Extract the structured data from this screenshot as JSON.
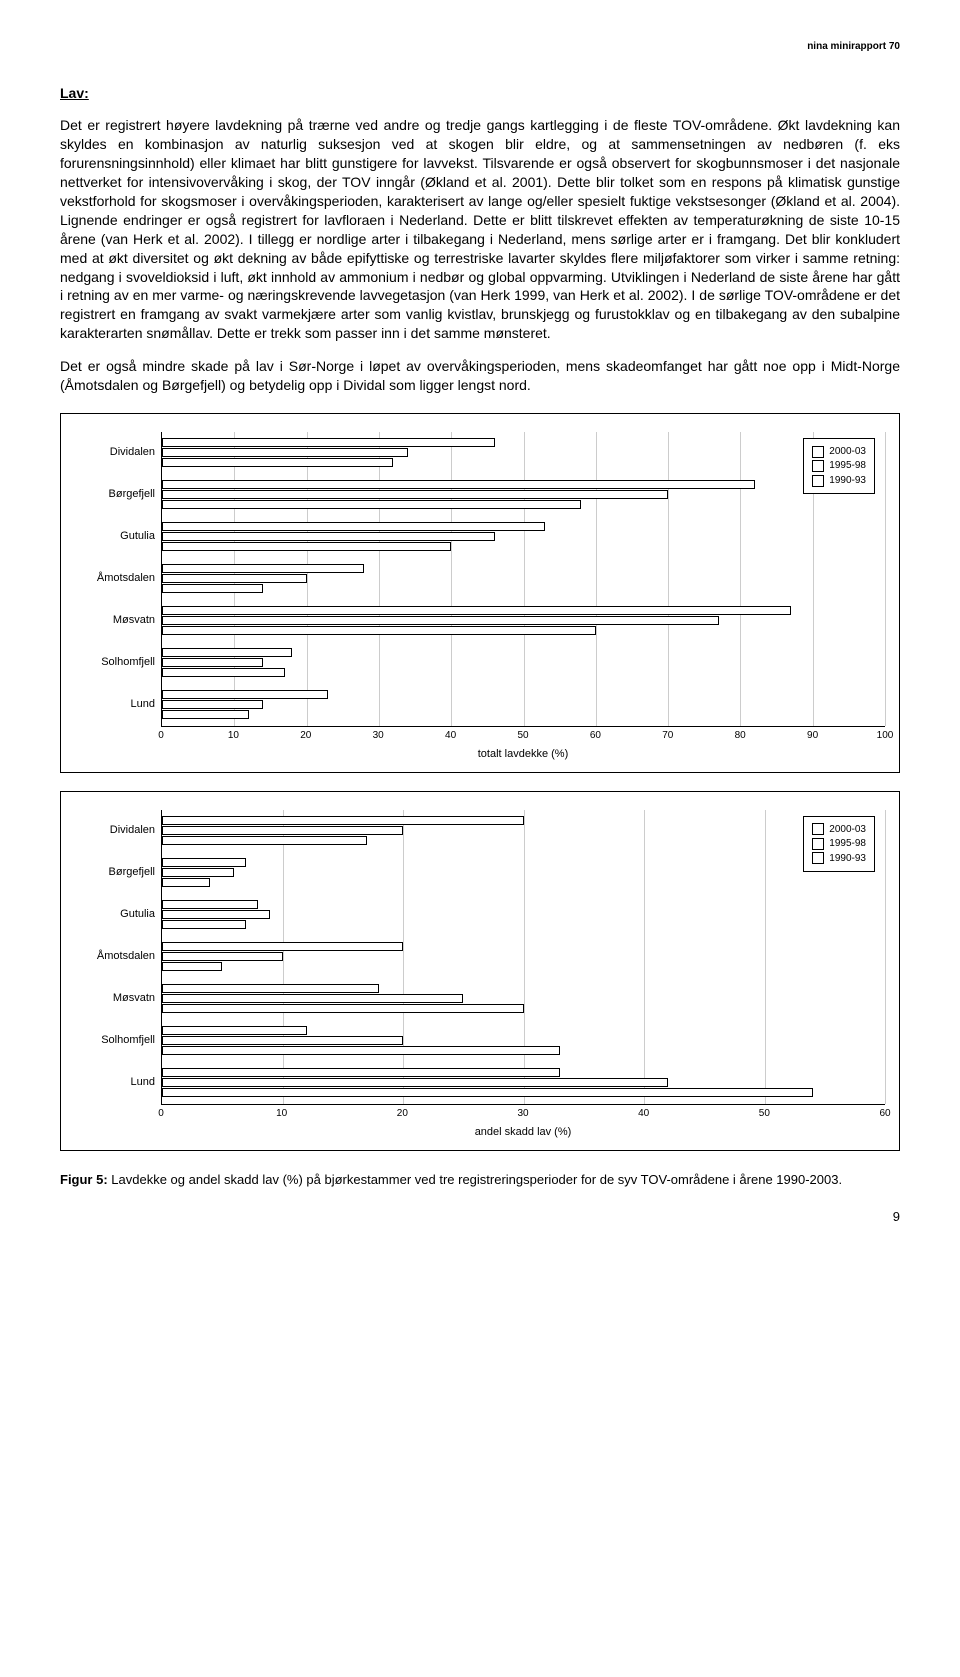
{
  "header": {
    "right": "nina minirapport 70"
  },
  "title": "Lav:",
  "para1": "Det er registrert høyere lavdekning på trærne ved andre og tredje gangs kartlegging i de fleste TOV-områdene. Økt lavdekning kan skyldes en kombinasjon av naturlig suksesjon ved at skogen blir eldre, og at sammensetningen av nedbøren (f. eks forurensningsinnhold) eller klimaet har blitt gunstigere for lavvekst. Tilsvarende er også observert for skogbunnsmoser i det nasjonale nettverket for intensivovervåking i skog, der TOV inngår (Økland et al. 2001). Dette blir tolket som en respons på klimatisk gunstige vekstforhold for skogsmoser i overvåkingsperioden, karakterisert av lange og/eller spesielt fuktige vekstsesonger (Økland et al. 2004). Lignende endringer er også registrert for lavfloraen i Nederland. Dette er blitt tilskrevet effekten av temperaturøkning de siste 10-15 årene (van Herk et al. 2002). I tillegg er nordlige arter i tilbakegang i Nederland, mens sørlige arter er i framgang. Det blir konkludert med at økt diversitet og økt dekning av både epifyttiske og terrestriske lavarter skyldes flere miljøfaktorer som virker i samme retning: nedgang i svoveldioksid i luft, økt innhold av ammonium i nedbør og global oppvarming. Utviklingen i Nederland de siste årene har gått i retning av en mer varme- og næringskrevende lavvegetasjon (van Herk 1999, van Herk et al. 2002). I de sørlige TOV-områdene er det registrert en framgang av svakt varmekjære arter som vanlig kvistlav, brunskjegg og furustokklav og en tilbakegang av den subalpine karakterarten snømållav. Dette er trekk som passer inn i det samme mønsteret.",
  "para2": "Det er også mindre skade på lav i Sør-Norge i løpet av overvåkingsperioden, mens skadeomfanget har gått noe opp i Midt-Norge (Åmotsdalen og Børgefjell) og betydelig opp i Dividal som ligger lengst nord.",
  "chart1": {
    "type": "bar-horizontal-grouped",
    "x_title": "totalt lavdekke (%)",
    "x_min": 0,
    "x_max": 100,
    "x_step": 10,
    "tick_fontsize": 10,
    "label_fontsize": 11,
    "bar_fill": "#ffffff",
    "bar_stroke": "#000000",
    "grid_color": "#cccccc",
    "background_color": "#ffffff",
    "categories": [
      "Dividalen",
      "Børgefjell",
      "Gutulia",
      "Åmotsdalen",
      "Møsvatn",
      "Solhomfjell",
      "Lund"
    ],
    "series": [
      {
        "name": "2000-03",
        "values": [
          46,
          82,
          53,
          28,
          87,
          18,
          23
        ]
      },
      {
        "name": "1995-98",
        "values": [
          34,
          70,
          46,
          20,
          77,
          14,
          14
        ]
      },
      {
        "name": "1990-93",
        "values": [
          32,
          58,
          40,
          14,
          60,
          17,
          12
        ]
      }
    ],
    "legend": [
      "2000-03",
      "1995-98",
      "1990-93"
    ]
  },
  "chart2": {
    "type": "bar-horizontal-grouped",
    "x_title": "andel skadd lav (%)",
    "x_min": 0,
    "x_max": 60,
    "x_step": 10,
    "tick_fontsize": 10,
    "label_fontsize": 11,
    "bar_fill": "#ffffff",
    "bar_stroke": "#000000",
    "grid_color": "#cccccc",
    "background_color": "#ffffff",
    "categories": [
      "Dividalen",
      "Børgefjell",
      "Gutulia",
      "Åmotsdalen",
      "Møsvatn",
      "Solhomfjell",
      "Lund"
    ],
    "series": [
      {
        "name": "2000-03",
        "values": [
          30,
          7,
          8,
          20,
          18,
          12,
          33
        ]
      },
      {
        "name": "1995-98",
        "values": [
          20,
          6,
          9,
          10,
          25,
          20,
          42
        ]
      },
      {
        "name": "1990-93",
        "values": [
          17,
          4,
          7,
          5,
          30,
          33,
          54
        ]
      }
    ],
    "legend": [
      "2000-03",
      "1995-98",
      "1990-93"
    ]
  },
  "caption_bold": "Figur 5:",
  "caption_rest": " Lavdekke og andel skadd lav (%) på bjørkestammer ved tre registreringsperioder for de syv TOV-områdene i årene 1990-2003.",
  "page_number": "9"
}
